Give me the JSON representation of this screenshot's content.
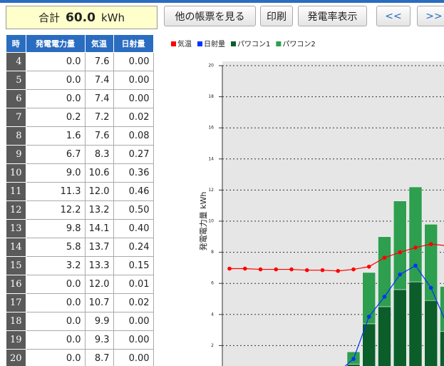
{
  "summary": {
    "label": "合計",
    "value": "60.0",
    "unit": "kWh"
  },
  "buttons": [
    "他の帳票を見る",
    "印刷",
    "発電率表示",
    "<<",
    ">>"
  ],
  "table": {
    "header": [
      "時",
      "発電電力量",
      "気温",
      "日射量"
    ],
    "rows": [
      [
        "4",
        "0.0",
        "7.6",
        "0.00"
      ],
      [
        "5",
        "0.0",
        "7.4",
        "0.00"
      ],
      [
        "6",
        "0.0",
        "7.4",
        "0.00"
      ],
      [
        "7",
        "0.2",
        "7.2",
        "0.02"
      ],
      [
        "8",
        "1.6",
        "7.6",
        "0.08"
      ],
      [
        "9",
        "6.7",
        "8.3",
        "0.27"
      ],
      [
        "10",
        "9.0",
        "10.6",
        "0.36"
      ],
      [
        "11",
        "11.3",
        "12.0",
        "0.46"
      ],
      [
        "12",
        "12.2",
        "13.2",
        "0.50"
      ],
      [
        "13",
        "9.8",
        "14.1",
        "0.40"
      ],
      [
        "14",
        "5.8",
        "13.7",
        "0.24"
      ],
      [
        "15",
        "3.2",
        "13.3",
        "0.15"
      ],
      [
        "16",
        "0.0",
        "12.0",
        "0.01"
      ],
      [
        "17",
        "0.0",
        "10.7",
        "0.02"
      ],
      [
        "18",
        "0.0",
        "9.9",
        "0.00"
      ],
      [
        "19",
        "0.0",
        "9.3",
        "0.00"
      ],
      [
        "20",
        "0.0",
        "8.7",
        "0.00"
      ]
    ]
  },
  "chart_data": {
    "type": "bar",
    "y_label": "発電電力量 kWh",
    "ylim": [
      0,
      20
    ],
    "yticks": [
      2,
      4,
      6,
      8,
      10,
      12,
      14,
      16,
      18,
      20
    ],
    "y2lim": [
      -20,
      60
    ],
    "y3lim": [
      0,
      1.4
    ],
    "grid": true,
    "series": [
      {
        "name": "気温",
        "type": "line",
        "axis": "y2",
        "color": "#ff0000",
        "values": [
          7.8,
          7.8,
          7.6,
          7.6,
          7.6,
          7.4,
          7.4,
          7.2,
          7.6,
          8.3,
          10.6,
          12.0,
          13.2,
          14.1,
          13.7
        ]
      },
      {
        "name": "日射量",
        "type": "line",
        "axis": "y3",
        "color": "#0033ff",
        "values": [
          0,
          0,
          0,
          0,
          0,
          0,
          0,
          0.02,
          0.08,
          0.27,
          0.36,
          0.46,
          0.5,
          0.4,
          0.24
        ]
      },
      {
        "name": "パワコン1",
        "type": "bar",
        "color": "#0b5e2a",
        "values": [
          0,
          0,
          0,
          0,
          0,
          0,
          0,
          0.1,
          0.8,
          3.4,
          4.5,
          5.6,
          6.1,
          4.9,
          2.9
        ]
      },
      {
        "name": "パワコン2",
        "type": "bar",
        "color": "#2e9e4f",
        "values": [
          0,
          0,
          0,
          0,
          0,
          0,
          0,
          0.1,
          0.8,
          3.3,
          4.5,
          5.7,
          6.1,
          4.9,
          2.9
        ]
      }
    ]
  }
}
